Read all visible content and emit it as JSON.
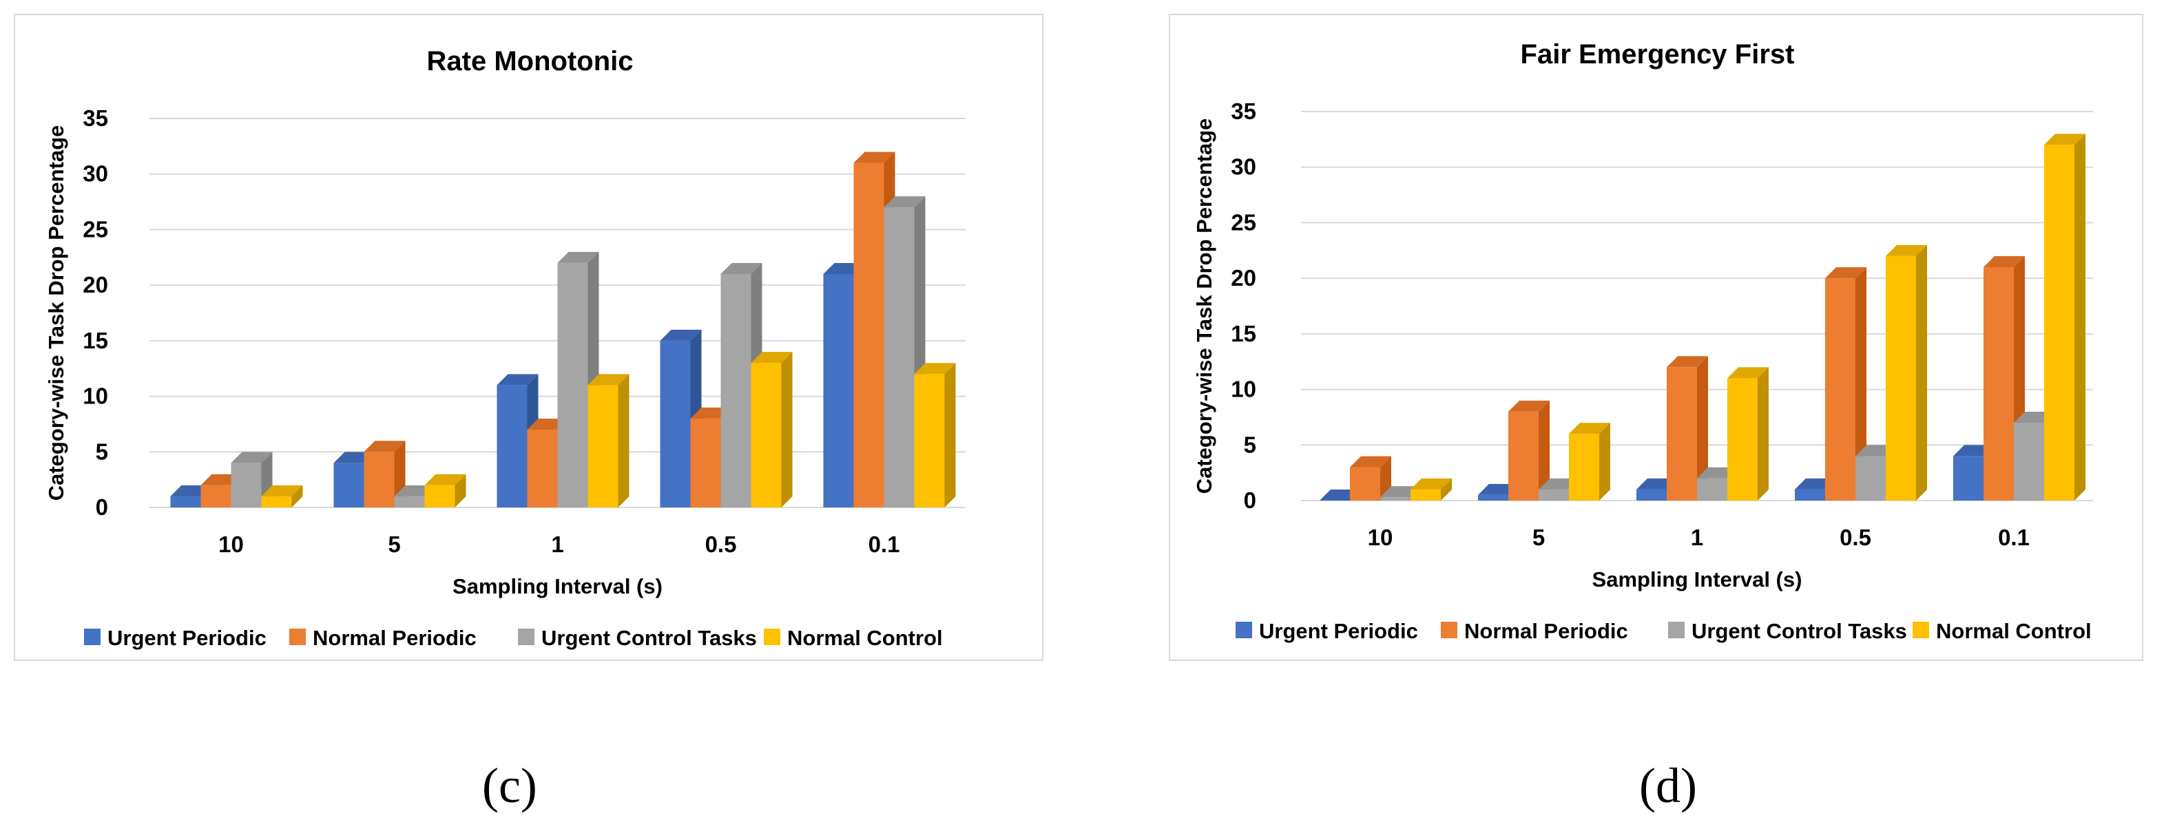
{
  "chart_data": [
    {
      "type": "bar",
      "title": "Rate Monotonic",
      "xlabel": "Sampling Interval (s)",
      "ylabel": "Category-wise Task Drop Percentage",
      "categories": [
        "10",
        "5",
        "1",
        "0.5",
        "0.1"
      ],
      "ylim": [
        0,
        35
      ],
      "yticks": [
        0,
        5,
        10,
        15,
        20,
        25,
        30,
        35
      ],
      "grid": true,
      "legend": "bottom",
      "series": [
        {
          "name": "Urgent Periodic",
          "values": [
            1,
            4,
            11,
            15,
            21
          ]
        },
        {
          "name": "Normal Periodic",
          "values": [
            2,
            5,
            7,
            8,
            31
          ]
        },
        {
          "name": "Urgent Control Tasks",
          "values": [
            4,
            1,
            22,
            21,
            27
          ]
        },
        {
          "name": "Normal Control",
          "values": [
            1,
            2,
            11,
            13,
            12
          ]
        }
      ],
      "caption": "(c)"
    },
    {
      "type": "bar",
      "title": "Fair Emergency First",
      "xlabel": "Sampling Interval (s)",
      "ylabel": "Category-wise Task Drop Percentage",
      "categories": [
        "10",
        "5",
        "1",
        "0.5",
        "0.1"
      ],
      "ylim": [
        0,
        35
      ],
      "yticks": [
        0,
        5,
        10,
        15,
        20,
        25,
        30,
        35
      ],
      "grid": true,
      "legend": "bottom",
      "series": [
        {
          "name": "Urgent Periodic",
          "values": [
            0,
            0.5,
            1,
            1,
            4
          ]
        },
        {
          "name": "Normal Periodic",
          "values": [
            3,
            8,
            12,
            20,
            21
          ]
        },
        {
          "name": "Urgent Control Tasks",
          "values": [
            0.3,
            1,
            2,
            4,
            7
          ]
        },
        {
          "name": "Normal Control",
          "values": [
            1,
            6,
            11,
            22,
            32
          ]
        }
      ],
      "caption": "(d)"
    }
  ],
  "colors": {
    "series": [
      "#4472c4",
      "#ed7d31",
      "#a5a5a5",
      "#ffc000"
    ],
    "series_side": [
      "#2f5597",
      "#c55a11",
      "#7f7f7f",
      "#bf9000"
    ],
    "series_top": [
      "#3a63ad",
      "#d56a22",
      "#939393",
      "#e0a800"
    ],
    "grid": "#d9d9d9",
    "axis": "#d9d9d9"
  }
}
